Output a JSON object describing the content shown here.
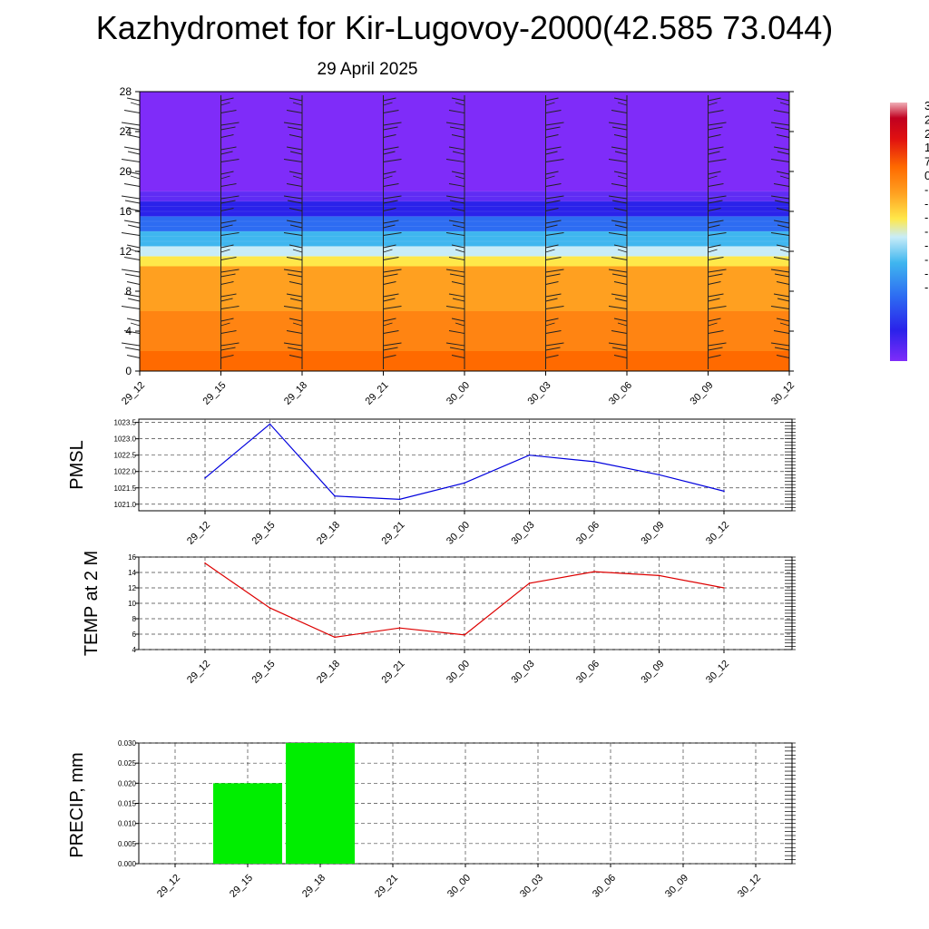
{
  "title": "Kazhydromet for Kir-Lugovoy-2000(42.585 73.044)",
  "date": "29 April 2025",
  "chart_data": [
    {
      "type": "heatmap",
      "description_type": "time-height cross-section with wind barbs",
      "x_ticks": [
        "29_12",
        "29_15",
        "29_18",
        "29_21",
        "30_00",
        "30_03",
        "30_06",
        "30_09",
        "30_12"
      ],
      "y_ticks": [
        0,
        4,
        8,
        12,
        16,
        20,
        24,
        28
      ],
      "ylim": [
        0,
        28
      ],
      "legend_partial_labels": [
        "3",
        "2",
        "2",
        "1",
        "7",
        "0",
        "-",
        "-",
        "-",
        "-",
        "-",
        "-",
        "-",
        "-"
      ],
      "color_bands": [
        {
          "from_y": 0,
          "to_y": 2,
          "color": "#ff6a00"
        },
        {
          "from_y": 2,
          "to_y": 6,
          "color": "#ff8412"
        },
        {
          "from_y": 6,
          "to_y": 10.5,
          "color": "#ffa020"
        },
        {
          "from_y": 10.5,
          "to_y": 11.5,
          "color": "#ffe84a"
        },
        {
          "from_y": 11.5,
          "to_y": 12.5,
          "color": "#c8ecf8"
        },
        {
          "from_y": 12.5,
          "to_y": 14,
          "color": "#3fb6ef"
        },
        {
          "from_y": 14,
          "to_y": 15.5,
          "color": "#2d6cf2"
        },
        {
          "from_y": 15.5,
          "to_y": 17,
          "color": "#2a22ea"
        },
        {
          "from_y": 17,
          "to_y": 18,
          "color": "#5f2cf4"
        },
        {
          "from_y": 18,
          "to_y": 28,
          "color": "#7f2cf9"
        }
      ]
    },
    {
      "type": "line",
      "ylabel": "PMSL",
      "categories": [
        "29_12",
        "29_15",
        "29_18",
        "29_21",
        "30_00",
        "30_03",
        "30_06",
        "30_09",
        "30_12"
      ],
      "values": [
        1021.8,
        1023.45,
        1021.25,
        1021.15,
        1021.65,
        1022.5,
        1022.3,
        1021.9,
        1021.4
      ],
      "y_ticks": [
        "1021.0",
        "1021.5",
        "1022.0",
        "1022.5",
        "1023.0",
        "1023.5"
      ],
      "ylim": [
        1020.8,
        1023.6
      ],
      "color": "#0000dd",
      "grid": true
    },
    {
      "type": "line",
      "ylabel": "TEMP at 2 M",
      "categories": [
        "29_12",
        "29_15",
        "29_18",
        "29_21",
        "30_00",
        "30_03",
        "30_06",
        "30_09",
        "30_12"
      ],
      "values": [
        15.2,
        9.4,
        5.6,
        6.8,
        5.9,
        12.6,
        14.1,
        13.6,
        12.0
      ],
      "y_ticks": [
        "4",
        "6",
        "8",
        "10",
        "12",
        "14",
        "16"
      ],
      "ylim": [
        4,
        16
      ],
      "color": "#dd0000",
      "grid": true
    },
    {
      "type": "bar",
      "ylabel": "PRECIP, mm",
      "categories": [
        "29_12",
        "29_15",
        "29_18",
        "29_21",
        "30_00",
        "30_03",
        "30_06",
        "30_09",
        "30_12"
      ],
      "values": [
        0,
        0.02,
        0.03,
        0,
        0,
        0,
        0,
        0,
        0
      ],
      "y_ticks": [
        "0.000",
        "0.005",
        "0.010",
        "0.015",
        "0.020",
        "0.025",
        "0.030"
      ],
      "ylim": [
        0,
        0.03
      ],
      "color": "#00ee00",
      "grid": true
    }
  ]
}
